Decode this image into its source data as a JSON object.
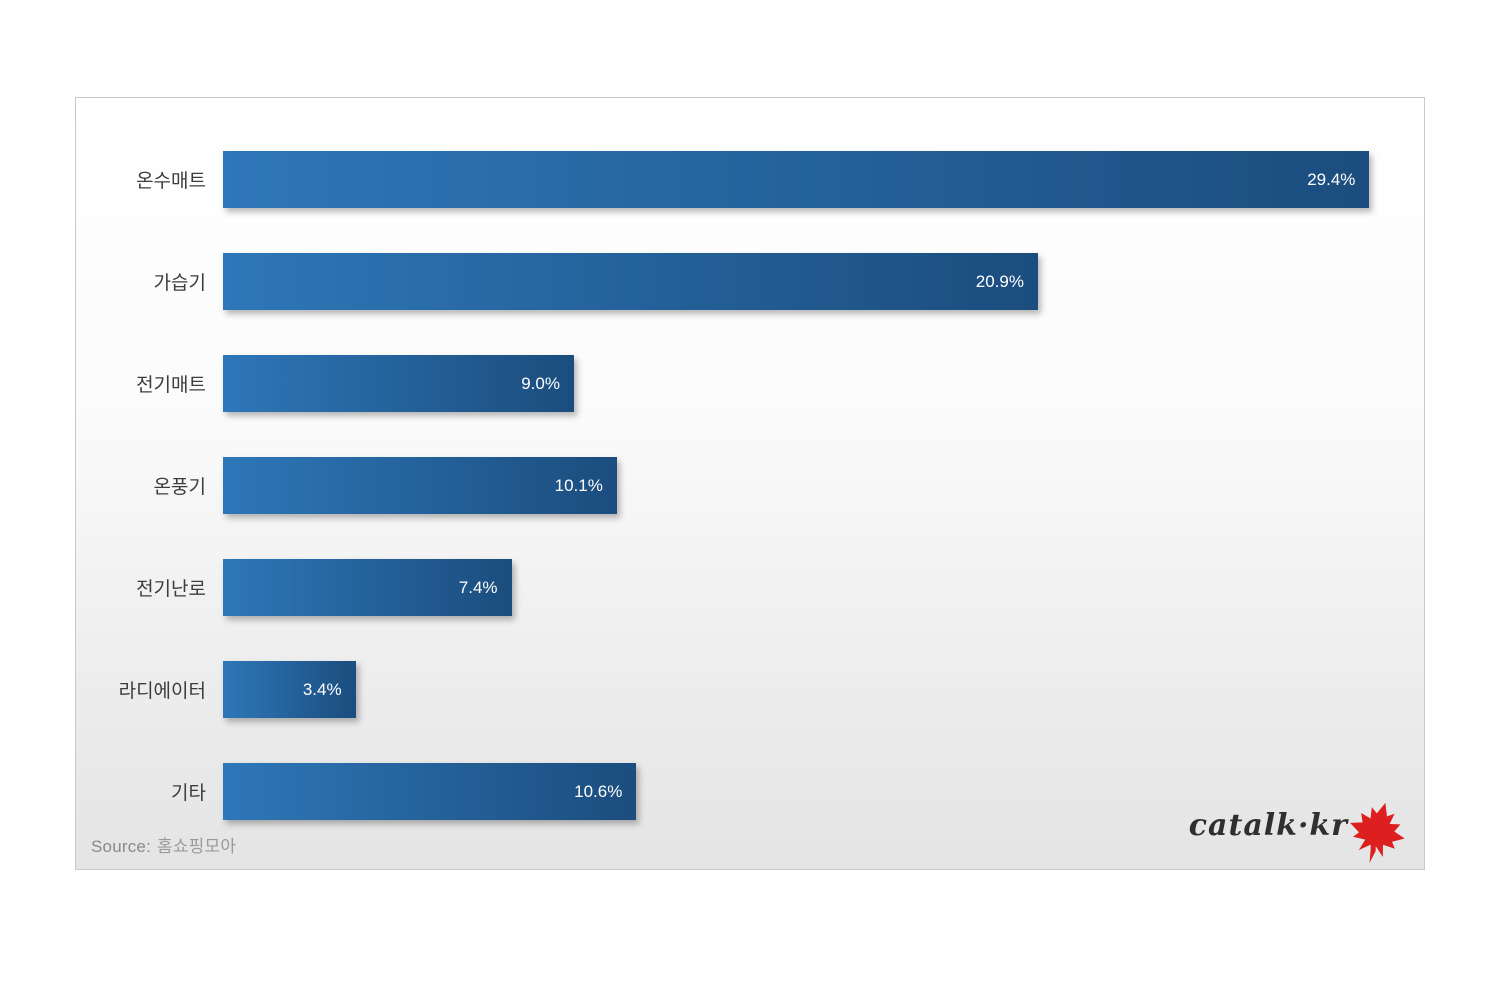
{
  "chart_data": {
    "type": "bar",
    "orientation": "horizontal",
    "title": "",
    "categories": [
      "온수매트",
      "가습기",
      "전기매트",
      "온풍기",
      "전기난로",
      "라디에이터",
      "기타"
    ],
    "values": [
      29.4,
      20.9,
      9.0,
      10.1,
      7.4,
      3.4,
      10.6
    ],
    "value_labels": [
      "29.4%",
      "20.9%",
      "9.0%",
      "10.1%",
      "7.4%",
      "3.4%",
      "10.6%"
    ],
    "xlim": [
      0,
      30.8
    ],
    "grid": false,
    "legend": "none",
    "bar_color_start": "#2E77B8",
    "bar_color_end": "#1B4D7E",
    "value_label_color": "#FFFFFF",
    "category_label_color": "#3D3D3D"
  },
  "footer": {
    "source_label": "Source:",
    "source_value": "홈쇼핑모아",
    "watermark": "catalk·kr",
    "leaf_color": "#DD1F1F"
  }
}
